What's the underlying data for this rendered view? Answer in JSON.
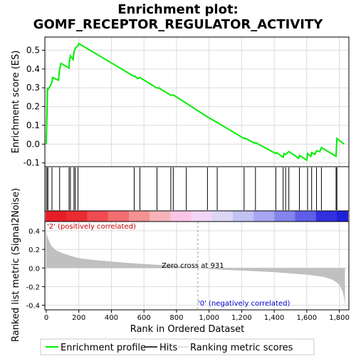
{
  "chart_data": {
    "type": "line",
    "title": "Enrichment plot:",
    "subtitle": "GOMF_RECEPTOR_REGULATOR_ACTIVITY",
    "es_panel": {
      "ylabel": "Enrichment score (ES)",
      "ylim": [
        -0.12,
        0.57
      ],
      "yticks": [
        -0.1,
        0.0,
        0.1,
        0.2,
        0.3,
        0.4,
        0.5
      ],
      "ytick_labels": [
        "-0.1",
        "0.0",
        "0.1",
        "0.2",
        "0.3",
        "0.4",
        "0.5"
      ],
      "x": [
        0,
        8,
        10,
        25,
        35,
        38,
        75,
        82,
        90,
        140,
        142,
        148,
        165,
        170,
        178,
        195,
        200,
        540,
        545,
        560,
        575,
        580,
        680,
        690,
        765,
        780,
        990,
        1050,
        1215,
        1220,
        1280,
        1285,
        1410,
        1415,
        1455,
        1460,
        1470,
        1490,
        1500,
        1550,
        1555,
        1600,
        1605,
        1625,
        1630,
        1650,
        1660,
        1680,
        1690,
        1780,
        1785,
        1830
      ],
      "es": [
        0.0,
        0.3,
        0.29,
        0.31,
        0.33,
        0.355,
        0.34,
        0.4,
        0.43,
        0.405,
        0.44,
        0.47,
        0.45,
        0.49,
        0.51,
        0.525,
        0.535,
        0.36,
        0.362,
        0.348,
        0.355,
        0.352,
        0.298,
        0.3,
        0.26,
        0.262,
        0.145,
        0.115,
        0.03,
        0.032,
        0.005,
        0.008,
        -0.05,
        -0.045,
        -0.07,
        -0.05,
        -0.055,
        -0.04,
        -0.045,
        -0.075,
        -0.06,
        -0.085,
        -0.05,
        -0.065,
        -0.045,
        -0.055,
        -0.035,
        -0.04,
        -0.018,
        -0.065,
        0.03,
        0.0
      ]
    },
    "hits": [
      0,
      8,
      10,
      35,
      82,
      140,
      148,
      170,
      178,
      195,
      540,
      575,
      680,
      765,
      780,
      860,
      990,
      1050,
      1215,
      1285,
      1410,
      1455,
      1470,
      1490,
      1555,
      1605,
      1630,
      1660,
      1690,
      1780,
      1785
    ],
    "metric_panel": {
      "ylabel": "Ranked list metric (Signal2Noise)",
      "xlabel": "Rank in Ordered Dataset",
      "xlim": [
        0,
        1850
      ],
      "xticks": [
        0,
        200,
        400,
        600,
        800,
        1000,
        1200,
        1400,
        1600,
        1800
      ],
      "xtick_labels": [
        "0",
        "200",
        "400",
        "600",
        "800",
        "1,000",
        "1,200",
        "1,400",
        "1,600",
        "1,800"
      ],
      "ylim": [
        -0.45,
        0.5
      ],
      "yticks": [
        -0.4,
        -0.2,
        0.0,
        0.2,
        0.4
      ],
      "ytick_labels": [
        "-0.4",
        "-0.2",
        "0.0",
        "0.2",
        "0.4"
      ],
      "rank": [
        0,
        10,
        30,
        60,
        100,
        150,
        200,
        300,
        400,
        500,
        600,
        700,
        800,
        850,
        900,
        931,
        1000,
        1100,
        1200,
        1300,
        1400,
        1500,
        1600,
        1650,
        1700,
        1750,
        1780,
        1800,
        1820,
        1830,
        1835
      ],
      "metric": [
        0.38,
        0.32,
        0.24,
        0.19,
        0.16,
        0.13,
        0.105,
        0.085,
        0.07,
        0.055,
        0.043,
        0.033,
        0.022,
        0.015,
        0.006,
        0.0,
        -0.01,
        -0.02,
        -0.028,
        -0.035,
        -0.045,
        -0.058,
        -0.072,
        -0.082,
        -0.095,
        -0.12,
        -0.15,
        -0.18,
        -0.25,
        -0.33,
        -0.41
      ],
      "zero_cross_label": "Zero cross at 931",
      "zero_cross_rank": 931,
      "pos_label": "'2' (positively correlated)",
      "neg_label": "'0' (negatively correlated)"
    },
    "legend": {
      "items": [
        "Enrichment profile",
        "Hits",
        "Ranking metric scores"
      ]
    },
    "colors": {
      "es_line": "#00ee00",
      "hit_line": "#000000",
      "metric_fill": "#c0c0c0",
      "pos_label": "#cc0000",
      "neg_label": "#0000cc",
      "grid": "#dcdcdc",
      "zero_cross_line": "#a0a0a0"
    },
    "heatmap_colors": [
      "#e81e27",
      "#ea2b31",
      "#ef4c50",
      "#f26e6f",
      "#f59293",
      "#f8b3ba",
      "#fbc6e6",
      "#f2d6f5",
      "#dcd6f6",
      "#c2c2f3",
      "#a6a6f1",
      "#8484ed",
      "#5e5ee8",
      "#3030e0"
    ],
    "grid": true
  }
}
